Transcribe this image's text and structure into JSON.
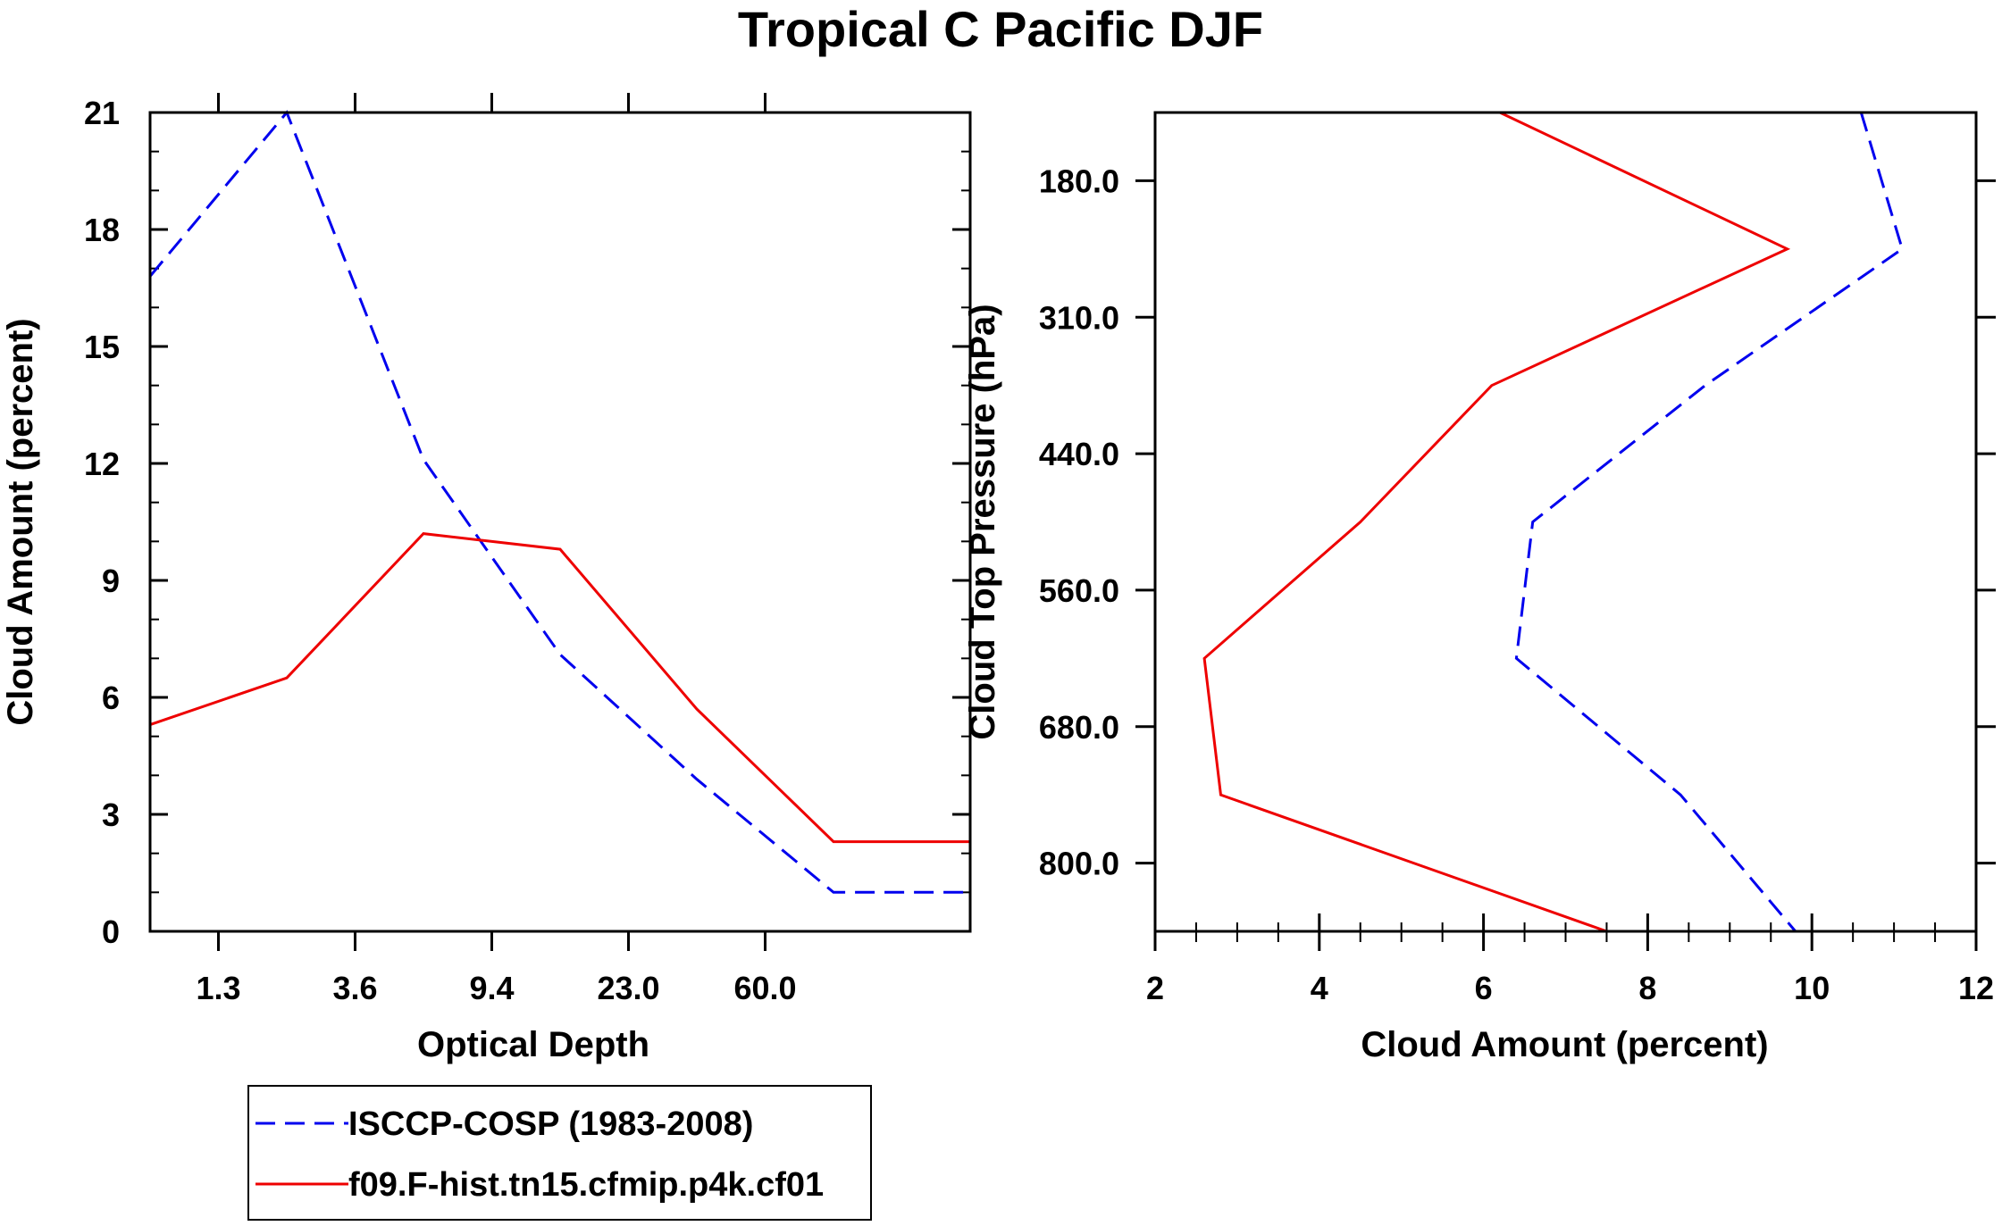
{
  "title": "Tropical C Pacific DJF",
  "colors": {
    "isccp": "#0000ee",
    "model": "#ee0000",
    "axis": "#000000"
  },
  "legend": {
    "entries": [
      {
        "name": "ISCCP-COSP (1983-2008)",
        "color": "#0000ee",
        "style": "dashed"
      },
      {
        "name": "f09.F-hist.tn15.cfmip.p4k.cf01",
        "color": "#ee0000",
        "style": "solid"
      }
    ]
  },
  "chart_data": [
    {
      "type": "line",
      "xlabel": "Optical Depth",
      "ylabel": "Cloud Amount (percent)",
      "x_tick_labels": [
        "1.3",
        "3.6",
        "9.4",
        "23.0",
        "60.0"
      ],
      "y_ticks": [
        0,
        3,
        6,
        9,
        12,
        15,
        18,
        21
      ],
      "ylim": [
        0,
        21
      ],
      "x_bins": 7,
      "series": [
        {
          "name": "ISCCP-COSP (1983-2008)",
          "x": [
            0,
            1,
            2,
            3,
            4,
            5,
            6
          ],
          "values": [
            16.8,
            21.0,
            12.1,
            7.1,
            3.9,
            1.0,
            1.0
          ]
        },
        {
          "name": "f09.F-hist.tn15.cfmip.p4k.cf01",
          "x": [
            0,
            1,
            2,
            3,
            4,
            5,
            6
          ],
          "values": [
            5.3,
            6.5,
            10.2,
            9.8,
            5.7,
            2.3,
            2.3
          ]
        }
      ]
    },
    {
      "type": "line",
      "xlabel": "Cloud Amount (percent)",
      "ylabel": "Cloud Top Pressure (hPa)",
      "x_ticks": [
        2,
        4,
        6,
        8,
        10,
        12
      ],
      "xlim": [
        2,
        12
      ],
      "y_tick_labels": [
        "180.0",
        "310.0",
        "440.0",
        "560.0",
        "680.0",
        "800.0"
      ],
      "y_bins": 7,
      "series": [
        {
          "name": "ISCCP-COSP (1983-2008)",
          "y": [
            0,
            1,
            2,
            3,
            4,
            5,
            6
          ],
          "values": [
            10.6,
            11.1,
            8.7,
            6.6,
            6.4,
            8.4,
            9.8
          ]
        },
        {
          "name": "f09.F-hist.tn15.cfmip.p4k.cf01",
          "y": [
            0,
            1,
            2,
            3,
            4,
            5,
            6
          ],
          "values": [
            6.2,
            9.7,
            6.1,
            4.5,
            2.6,
            2.8,
            7.5
          ]
        }
      ]
    }
  ]
}
